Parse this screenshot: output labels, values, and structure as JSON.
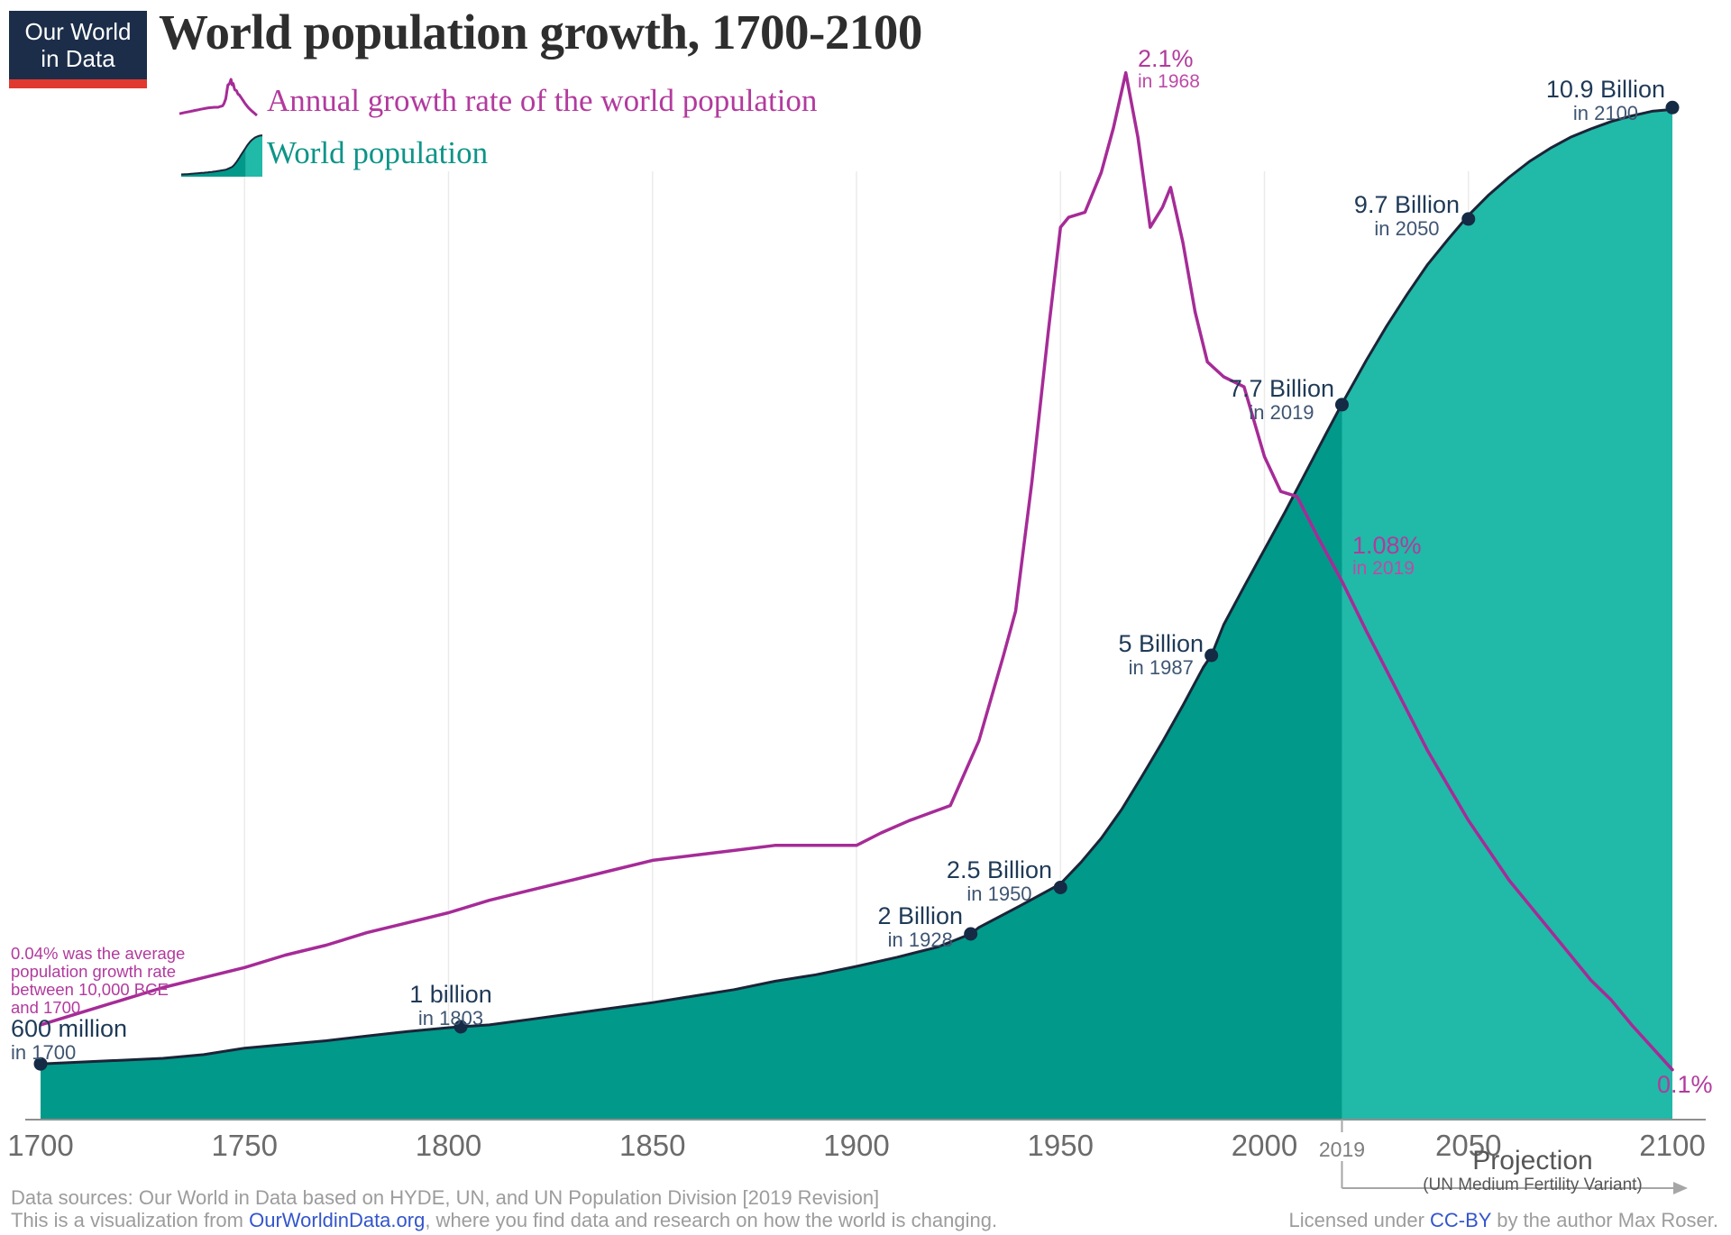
{
  "logo": {
    "line1": "Our World",
    "line2": "in Data"
  },
  "title": "World population growth, 1700-2100",
  "legend": {
    "growth_label": "Annual growth rate of the world population",
    "population_label": "World population"
  },
  "chart_data": {
    "type": "area",
    "title": "World population growth, 1700-2100",
    "xlabel": "Year",
    "x_range": [
      1700,
      2100
    ],
    "grid": "vertical-only",
    "grid_years": [
      1750,
      1800,
      1850,
      1900,
      1950,
      2000,
      2050
    ],
    "legend_position": "top-left",
    "projection_from": 2019,
    "series": [
      {
        "name": "World population",
        "type": "area",
        "unit": "billion",
        "points": [
          [
            1700,
            0.6
          ],
          [
            1710,
            0.62
          ],
          [
            1720,
            0.64
          ],
          [
            1730,
            0.66
          ],
          [
            1740,
            0.7
          ],
          [
            1750,
            0.77
          ],
          [
            1760,
            0.81
          ],
          [
            1770,
            0.85
          ],
          [
            1780,
            0.9
          ],
          [
            1790,
            0.95
          ],
          [
            1800,
            0.99
          ],
          [
            1803,
            1.0
          ],
          [
            1810,
            1.02
          ],
          [
            1820,
            1.08
          ],
          [
            1830,
            1.14
          ],
          [
            1840,
            1.2
          ],
          [
            1850,
            1.26
          ],
          [
            1860,
            1.33
          ],
          [
            1870,
            1.4
          ],
          [
            1880,
            1.49
          ],
          [
            1890,
            1.56
          ],
          [
            1900,
            1.65
          ],
          [
            1910,
            1.75
          ],
          [
            1920,
            1.86
          ],
          [
            1928,
            2.0
          ],
          [
            1930,
            2.07
          ],
          [
            1940,
            2.3
          ],
          [
            1950,
            2.54
          ],
          [
            1955,
            2.77
          ],
          [
            1960,
            3.03
          ],
          [
            1965,
            3.34
          ],
          [
            1970,
            3.7
          ],
          [
            1975,
            4.07
          ],
          [
            1980,
            4.46
          ],
          [
            1985,
            4.87
          ],
          [
            1987,
            5.0
          ],
          [
            1990,
            5.33
          ],
          [
            1995,
            5.74
          ],
          [
            2000,
            6.14
          ],
          [
            2005,
            6.54
          ],
          [
            2010,
            6.96
          ],
          [
            2015,
            7.38
          ],
          [
            2019,
            7.71
          ],
          [
            2025,
            8.18
          ],
          [
            2030,
            8.55
          ],
          [
            2035,
            8.89
          ],
          [
            2040,
            9.21
          ],
          [
            2045,
            9.48
          ],
          [
            2050,
            9.74
          ],
          [
            2055,
            9.96
          ],
          [
            2060,
            10.15
          ],
          [
            2065,
            10.32
          ],
          [
            2070,
            10.46
          ],
          [
            2075,
            10.58
          ],
          [
            2080,
            10.67
          ],
          [
            2085,
            10.75
          ],
          [
            2090,
            10.81
          ],
          [
            2095,
            10.86
          ],
          [
            2100,
            10.88
          ]
        ]
      },
      {
        "name": "Annual growth rate of the world population",
        "type": "line",
        "unit": "%",
        "points": [
          [
            1700,
            0.19
          ],
          [
            1710,
            0.215
          ],
          [
            1720,
            0.24
          ],
          [
            1730,
            0.265
          ],
          [
            1740,
            0.285
          ],
          [
            1750,
            0.305
          ],
          [
            1760,
            0.33
          ],
          [
            1770,
            0.35
          ],
          [
            1780,
            0.375
          ],
          [
            1790,
            0.395
          ],
          [
            1800,
            0.415
          ],
          [
            1810,
            0.44
          ],
          [
            1820,
            0.46
          ],
          [
            1830,
            0.48
          ],
          [
            1840,
            0.5
          ],
          [
            1850,
            0.52
          ],
          [
            1860,
            0.53
          ],
          [
            1870,
            0.54
          ],
          [
            1880,
            0.55
          ],
          [
            1890,
            0.55
          ],
          [
            1900,
            0.55
          ],
          [
            1906,
            0.575
          ],
          [
            1913,
            0.6
          ],
          [
            1918,
            0.615
          ],
          [
            1923,
            0.63
          ],
          [
            1930,
            0.76
          ],
          [
            1936,
            0.93
          ],
          [
            1939,
            1.02
          ],
          [
            1943,
            1.28
          ],
          [
            1947,
            1.58
          ],
          [
            1950,
            1.79
          ],
          [
            1952,
            1.81
          ],
          [
            1956,
            1.82
          ],
          [
            1960,
            1.9
          ],
          [
            1963,
            1.99
          ],
          [
            1966,
            2.1
          ],
          [
            1969,
            1.97
          ],
          [
            1972,
            1.79
          ],
          [
            1975,
            1.83
          ],
          [
            1977,
            1.87
          ],
          [
            1980,
            1.76
          ],
          [
            1983,
            1.62
          ],
          [
            1986,
            1.52
          ],
          [
            1990,
            1.49
          ],
          [
            1995,
            1.47
          ],
          [
            2000,
            1.33
          ],
          [
            2004,
            1.26
          ],
          [
            2008,
            1.25
          ],
          [
            2013,
            1.17
          ],
          [
            2019,
            1.08
          ],
          [
            2025,
            0.98
          ],
          [
            2030,
            0.9
          ],
          [
            2035,
            0.82
          ],
          [
            2040,
            0.74
          ],
          [
            2045,
            0.67
          ],
          [
            2050,
            0.6
          ],
          [
            2055,
            0.54
          ],
          [
            2060,
            0.48
          ],
          [
            2065,
            0.43
          ],
          [
            2070,
            0.38
          ],
          [
            2075,
            0.33
          ],
          [
            2080,
            0.28
          ],
          [
            2085,
            0.24
          ],
          [
            2090,
            0.19
          ],
          [
            2095,
            0.145
          ],
          [
            2100,
            0.1
          ]
        ]
      }
    ],
    "markers": [
      [
        1700,
        0.6
      ],
      [
        1803,
        1.0
      ],
      [
        1928,
        2.0
      ],
      [
        1950,
        2.5
      ],
      [
        1987,
        5.0
      ],
      [
        2019,
        7.7
      ],
      [
        2050,
        9.7
      ],
      [
        2100,
        10.9
      ]
    ]
  },
  "annotations": {
    "pop_1700": {
      "line1": "600 million",
      "line2": "in 1700"
    },
    "pop_1803": {
      "line1": "1 billion",
      "line2": "in 1803"
    },
    "pop_1928": {
      "line1": "2 Billion",
      "line2": "in 1928"
    },
    "pop_1950": {
      "line1": "2.5 Billion",
      "line2": "in 1950"
    },
    "pop_1987": {
      "line1": "5 Billion",
      "line2": "in 1987"
    },
    "pop_2019": {
      "line1": "7.7 Billion",
      "line2": "in 2019"
    },
    "pop_2050": {
      "line1": "9.7 Billion",
      "line2": "in 2050"
    },
    "pop_2100": {
      "line1": "10.9 Billion",
      "line2": "in 2100"
    },
    "growth_peak": {
      "line1": "2.1%",
      "line2": "in 1968"
    },
    "growth_2019": {
      "line1": "1.08%",
      "line2": "in 2019"
    },
    "growth_2100": {
      "line1": "0.1%"
    },
    "growth_average_note": {
      "line1": "0.04% was the average",
      "line2": "population growth rate",
      "line3": "between 10,000 BCE",
      "line4": "and 1700"
    }
  },
  "x_axis": {
    "tick_years": [
      1700,
      1750,
      1800,
      1850,
      1900,
      1950,
      2000,
      2050,
      2100
    ],
    "projection_tick_year": 2019
  },
  "projection_note": {
    "label": "Projection",
    "sublabel": "(UN Medium Fertility Variant)"
  },
  "footer": {
    "source_line": "Data sources: Our World in Data based on HYDE, UN, and UN Population Division [2019 Revision]",
    "viz_prefix": "This is a visualization from ",
    "viz_link": "OurWorldinData.org",
    "viz_suffix": ", where you find data and research on how the world is changing.",
    "license_prefix": "Licensed under ",
    "license_link": "CC-BY",
    "license_suffix": " by the author Max Roser."
  },
  "colors": {
    "area_historical": "#00998a",
    "area_projection": "#21b9a8",
    "population_outline": "#1c2438",
    "growth_line": "#a62b97",
    "magenta_text": "#b23a9d",
    "magenta_text2": "#bc4ba6",
    "teal_text": "#0d9488",
    "annotation_dark": "#1f3a57",
    "annotation_light": "#3e5572",
    "dot": "#152a44",
    "axis": "#8f8f8f",
    "gridline": "#ebebeb",
    "tick_text": "#6b6b6b",
    "footer_text": "#9c9c9c",
    "link_blue": "#3355cc",
    "logo_navy": "#1b2d49",
    "logo_red": "#e0392f",
    "title_color": "#2e2e2e",
    "projection_label": "#565656",
    "arrow_gray": "#a6a6a6"
  }
}
